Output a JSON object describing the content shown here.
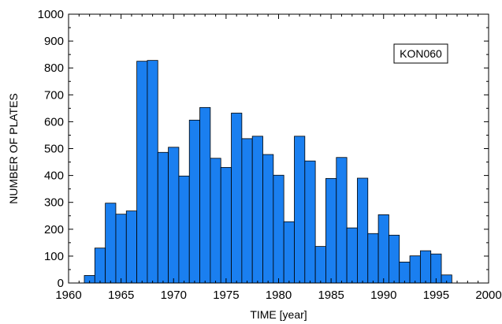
{
  "chart_data": {
    "type": "bar",
    "title": "",
    "xlabel": "TIME  [year]",
    "ylabel": "NUMBER OF PLATES",
    "legend_label": "KON060",
    "legend_placement": "top-right",
    "grid": false,
    "xlim": [
      1960,
      2000
    ],
    "ylim": [
      0,
      1000
    ],
    "xticks": [
      1960,
      1965,
      1970,
      1975,
      1980,
      1985,
      1990,
      1995,
      2000
    ],
    "yticks": [
      0,
      100,
      200,
      300,
      400,
      500,
      600,
      700,
      800,
      900,
      1000
    ],
    "bar_color": "#1a7ff0",
    "bar_edge_color": "#000000",
    "x": [
      1962,
      1963,
      1964,
      1965,
      1966,
      1967,
      1968,
      1969,
      1970,
      1971,
      1972,
      1973,
      1974,
      1975,
      1976,
      1977,
      1978,
      1979,
      1980,
      1981,
      1982,
      1983,
      1984,
      1985,
      1986,
      1987,
      1988,
      1989,
      1990,
      1991,
      1992,
      1993,
      1994,
      1995,
      1996
    ],
    "values": [
      28,
      130,
      297,
      256,
      268,
      825,
      828,
      486,
      505,
      398,
      606,
      653,
      464,
      430,
      632,
      537,
      546,
      478,
      401,
      228,
      546,
      454,
      136,
      389,
      467,
      205,
      390,
      184,
      254,
      178,
      78,
      101,
      120,
      108,
      30
    ]
  }
}
